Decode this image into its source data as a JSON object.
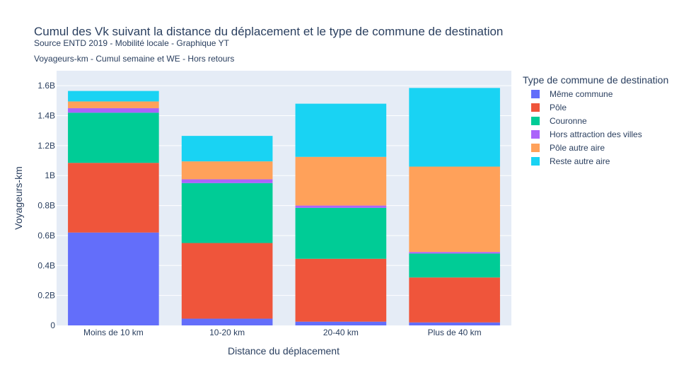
{
  "chart_data": {
    "type": "bar",
    "barmode": "stack",
    "title": "Cumul des Vk suivant la distance du déplacement et le type de commune de destination",
    "subtitle": "Source ENTD 2019 - Mobilité locale - Graphique YT",
    "subtitle2": "Voyageurs-km - Cumul semaine et WE - Hors retours",
    "xlabel": "Distance du déplacement",
    "ylabel": "Voyageurs-km",
    "ylim": [
      0,
      1.7
    ],
    "yticks": [
      0,
      0.2,
      0.4,
      0.6,
      0.8,
      1,
      1.2,
      1.4,
      1.6
    ],
    "ytick_labels": [
      "0",
      "0.2B",
      "0.4B",
      "0.6B",
      "0.8B",
      "1B",
      "1.2B",
      "1.4B",
      "1.6B"
    ],
    "grid": true,
    "legend_title": "Type de commune de destination",
    "legend_position": "right",
    "categories": [
      "Moins de 10 km",
      "10-20 km",
      "20-40 km",
      "Plus de 40 km"
    ],
    "series": [
      {
        "name": "Même commune",
        "color": "#636efa",
        "values": [
          0.62,
          0.045,
          0.025,
          0.02
        ]
      },
      {
        "name": "Pôle",
        "color": "#ef553b",
        "values": [
          0.465,
          0.505,
          0.42,
          0.3
        ]
      },
      {
        "name": "Couronne",
        "color": "#00cc96",
        "values": [
          0.335,
          0.4,
          0.34,
          0.16
        ]
      },
      {
        "name": "Hors attraction des villes",
        "color": "#ab63fa",
        "values": [
          0.03,
          0.025,
          0.015,
          0.01
        ]
      },
      {
        "name": "Pôle autre aire",
        "color": "#ffa15a",
        "values": [
          0.045,
          0.12,
          0.325,
          0.57
        ]
      },
      {
        "name": "Reste autre aire",
        "color": "#19d3f3",
        "values": [
          0.07,
          0.17,
          0.355,
          0.525
        ]
      }
    ]
  }
}
